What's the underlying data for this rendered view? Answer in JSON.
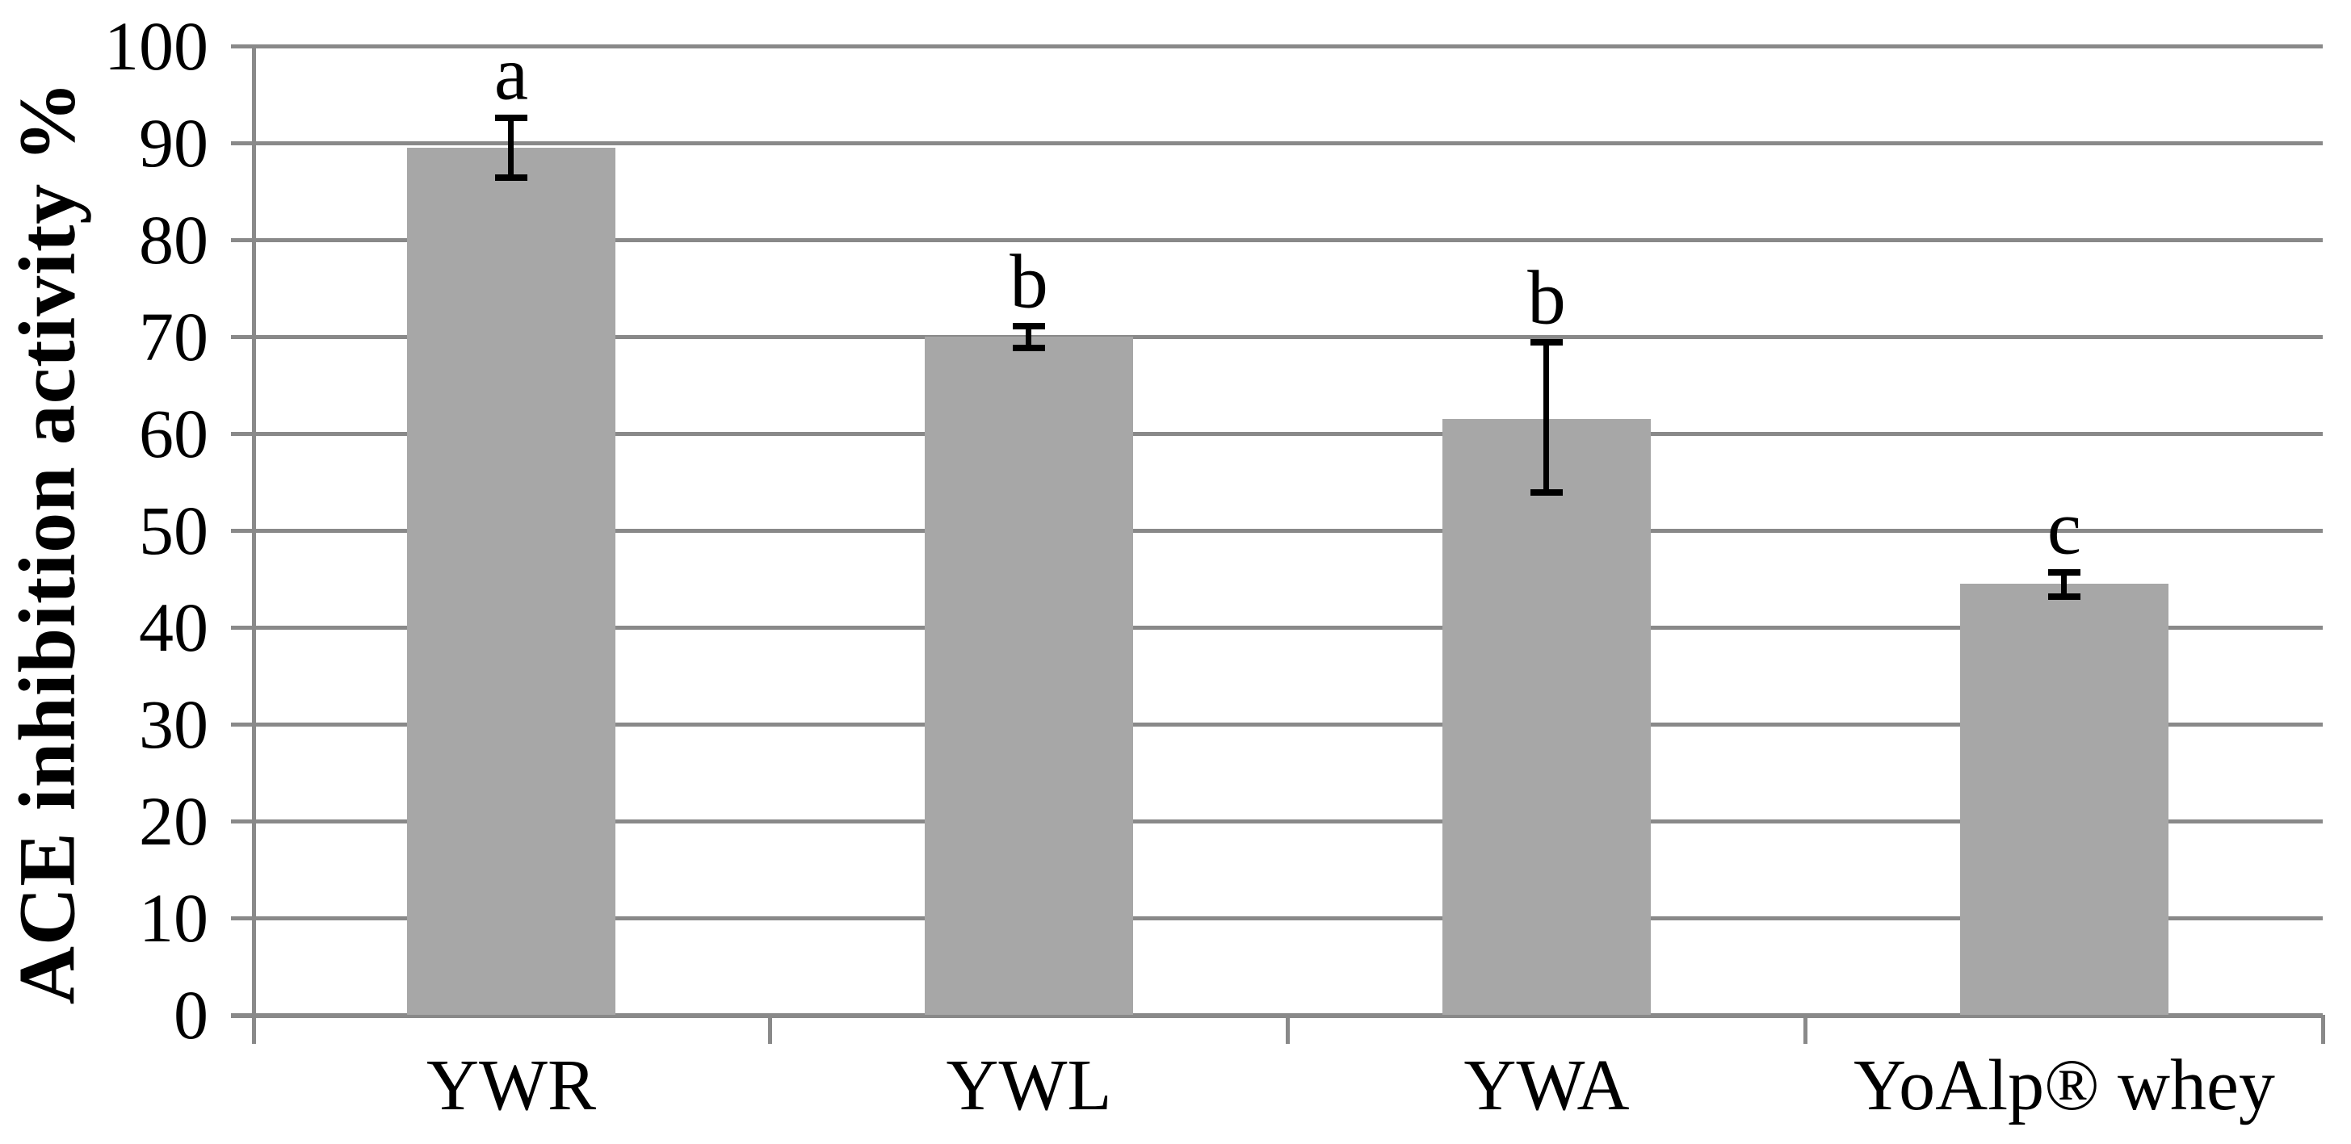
{
  "chart_data": {
    "type": "bar",
    "title": "",
    "ylabel": "ACE inhibition activity %",
    "xlabel": "",
    "categories": [
      "YWR",
      "YWL",
      "YWA",
      "YoAlp® whey"
    ],
    "values": [
      89.5,
      70.0,
      61.5,
      44.5
    ],
    "error_upper": [
      92.6,
      71.1,
      69.4,
      45.7
    ],
    "error_lower": [
      86.4,
      68.8,
      53.9,
      43.2
    ],
    "significance_letters": [
      "a",
      "b",
      "b",
      "c"
    ],
    "ylim": [
      0,
      100
    ],
    "yticks": [
      0,
      10,
      20,
      30,
      40,
      50,
      60,
      70,
      80,
      90,
      100
    ],
    "grid": "horizontal",
    "legend": "none",
    "colors": {
      "bar_fill": "#a7a7a7",
      "gridline": "#898989",
      "axis": "#898989",
      "error_bar": "#000000",
      "text": "#000000",
      "background": "#ffffff"
    }
  }
}
